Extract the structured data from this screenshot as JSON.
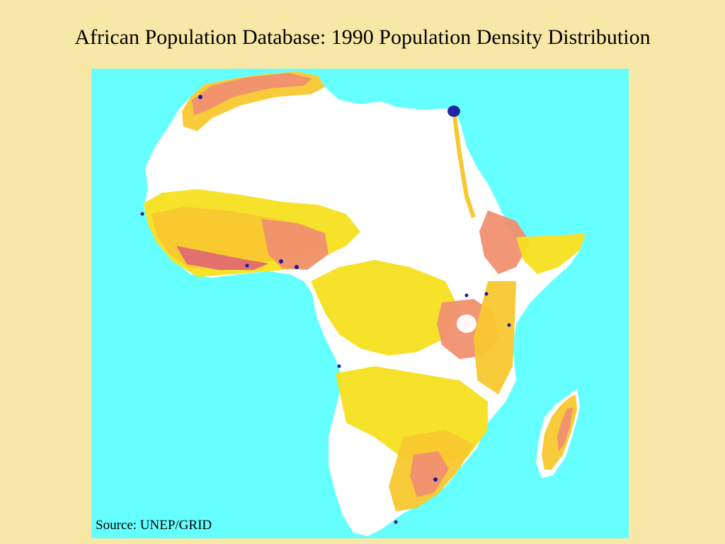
{
  "slide": {
    "title": "African Population Database: 1990 Population Density Distribution",
    "source": "Source: UNEP/GRID"
  },
  "map": {
    "region": "Africa",
    "year": "1990",
    "colors": {
      "ocean": "#66ffff",
      "background": "#f8e8a8",
      "uninhabited": "#ffffff",
      "low_density": "#f5e020",
      "medium_low_density": "#f8c830",
      "medium_high_density": "#f09070",
      "high_density": "#e06a70",
      "very_high_density": "#1a1aa0"
    }
  }
}
